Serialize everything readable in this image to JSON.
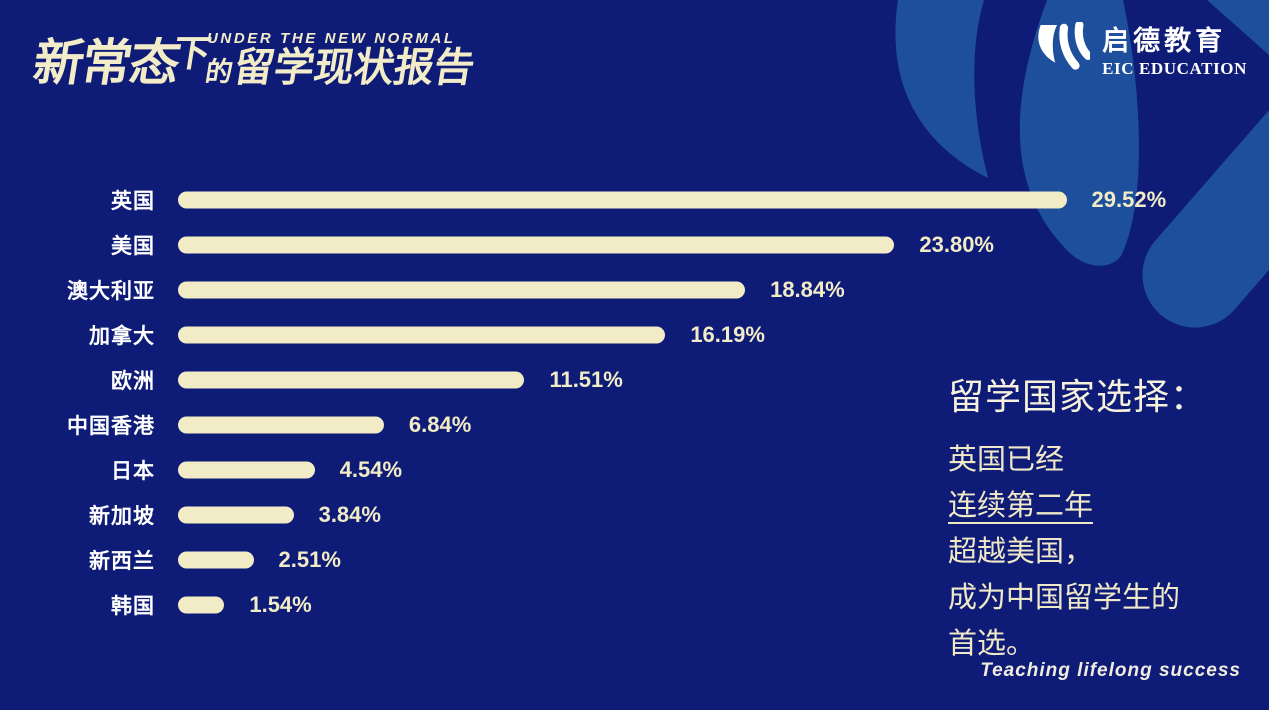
{
  "header": {
    "title_en": "UNDER THE NEW NORMAL",
    "title_cn_part1": "新常态",
    "title_cn_part2": "下",
    "title_cn_part3": "的",
    "title_cn_part4": "留学现状报告"
  },
  "brand": {
    "name_cn": "启德教育",
    "name_en": "EIC EDUCATION",
    "tagline": "Teaching lifelong success",
    "logo_icon": "eic-double-leaf-swoosh"
  },
  "chart_data": {
    "type": "bar",
    "orientation": "horizontal",
    "categories": [
      "英国",
      "美国",
      "澳大利亚",
      "加拿大",
      "欧洲",
      "中国香港",
      "日本",
      "新加坡",
      "新西兰",
      "韩国"
    ],
    "values": [
      29.52,
      23.8,
      18.84,
      16.19,
      11.51,
      6.84,
      4.54,
      3.84,
      2.51,
      1.54
    ],
    "value_labels": [
      "29.52%",
      "23.80%",
      "18.84%",
      "16.19%",
      "11.51%",
      "6.84%",
      "4.54%",
      "3.84%",
      "2.51%",
      "1.54%"
    ],
    "title": "",
    "xlabel": "",
    "ylabel": "",
    "xlim": [
      0,
      30
    ],
    "grid": false,
    "legend": "none",
    "bar_color": "#f2ecc6",
    "label_color": "#ffffff"
  },
  "annotation": {
    "heading": "留学国家选择：",
    "lines": [
      "英国已经",
      "连续第二年",
      "超越美国，",
      "成为中国留学生的",
      "首选。"
    ],
    "underlined_line_index": 1
  },
  "colors": {
    "background": "#0e1c77",
    "swoosh_blue": "#1e4f9c",
    "cream": "#f2ecc6",
    "white": "#ffffff"
  }
}
